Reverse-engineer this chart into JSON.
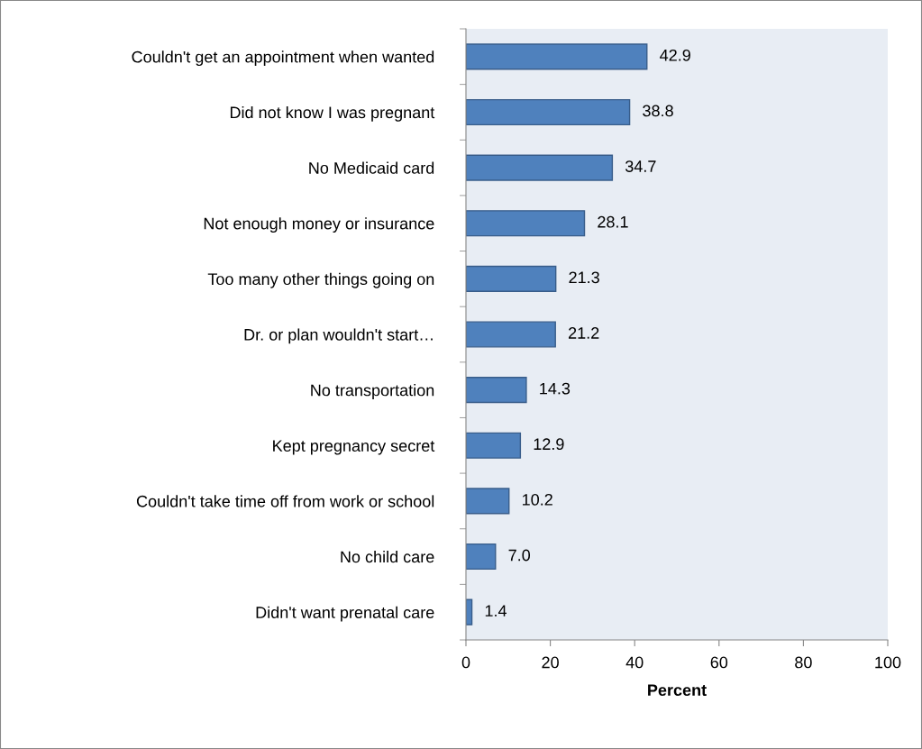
{
  "chart_data": {
    "type": "bar",
    "orientation": "horizontal",
    "xlabel": "Percent",
    "categories": [
      "Couldn't get an appointment when wanted",
      "Did not know I was pregnant",
      "No Medicaid card",
      "Not enough money or insurance",
      "Too many other things going on",
      "Dr. or plan wouldn't start…",
      "No transportation",
      "Kept pregnancy secret",
      "Couldn't take time off from work or school",
      "No child care",
      "Didn't want prenatal care"
    ],
    "values": [
      42.9,
      38.8,
      34.7,
      28.1,
      21.3,
      21.2,
      14.3,
      12.9,
      10.2,
      7.0,
      1.4
    ],
    "value_labels": [
      "42.9",
      "38.8",
      "34.7",
      "28.1",
      "21.3",
      "21.2",
      "14.3",
      "12.9",
      "10.2",
      "7.0",
      "1.4"
    ],
    "color": "#4f81bd",
    "xlim": [
      0,
      100
    ],
    "xticks": [
      0,
      20,
      40,
      60,
      80,
      100
    ],
    "grid": false,
    "legend": false
  }
}
